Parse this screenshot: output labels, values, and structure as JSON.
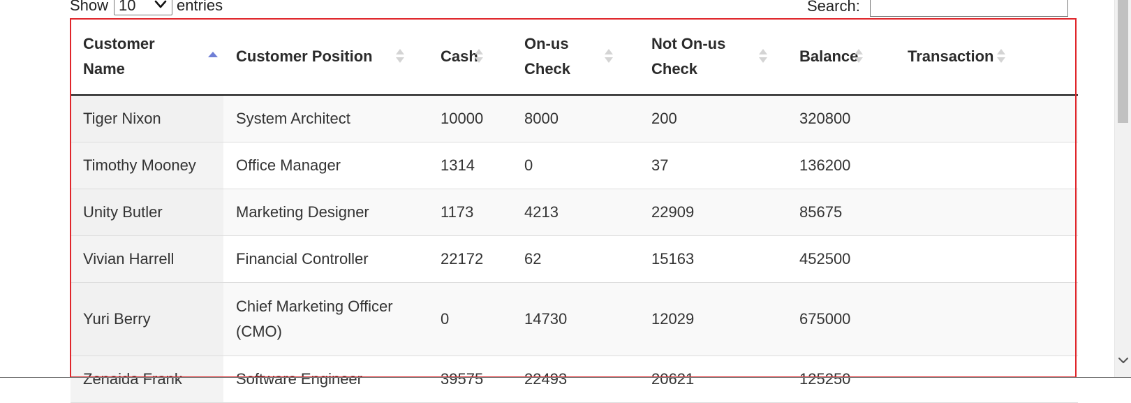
{
  "controls": {
    "show_label": "Show",
    "length_value": "10",
    "entries_label": "entries",
    "search_label": "Search:",
    "search_value": ""
  },
  "table": {
    "columns": [
      {
        "label": "Customer Name",
        "sort": "ascending"
      },
      {
        "label": "Customer Position",
        "sort": "none"
      },
      {
        "label": "Cash",
        "sort": "none"
      },
      {
        "label": "On-us Check",
        "sort": "none"
      },
      {
        "label": "Not On-us Check",
        "sort": "none"
      },
      {
        "label": "Balance",
        "sort": "none"
      },
      {
        "label": "Transaction",
        "sort": "none"
      }
    ],
    "rows": [
      {
        "name": "Tiger Nixon",
        "position": "System Architect",
        "cash": "10000",
        "onus": "8000",
        "notonus": "200",
        "balance": "320800",
        "transaction": ""
      },
      {
        "name": "Timothy Mooney",
        "position": "Office Manager",
        "cash": "1314",
        "onus": "0",
        "notonus": "37",
        "balance": "136200",
        "transaction": ""
      },
      {
        "name": "Unity Butler",
        "position": "Marketing Designer",
        "cash": "1173",
        "onus": "4213",
        "notonus": "22909",
        "balance": "85675",
        "transaction": ""
      },
      {
        "name": "Vivian Harrell",
        "position": "Financial Controller",
        "cash": "22172",
        "onus": "62",
        "notonus": "15163",
        "balance": "452500",
        "transaction": ""
      },
      {
        "name": "Yuri Berry",
        "position": "Chief Marketing Officer (CMO)",
        "cash": "0",
        "onus": "14730",
        "notonus": "12029",
        "balance": "675000",
        "transaction": ""
      },
      {
        "name": "Zenaida Frank",
        "position": "Software Engineer",
        "cash": "39575",
        "onus": "22493",
        "notonus": "20621",
        "balance": "125250",
        "transaction": ""
      }
    ]
  },
  "colors": {
    "sort_active": "#6f7fd6",
    "sort_inactive": "#d4d4d4",
    "focus_outline": "#e0262b",
    "header_rule": "#111111"
  },
  "icons": {
    "length_select": "chevron-down-icon",
    "sort_active": "sort-ascending-icon",
    "sort_inactive": "sort-both-icon",
    "scroll_down": "chevron-down-icon"
  }
}
